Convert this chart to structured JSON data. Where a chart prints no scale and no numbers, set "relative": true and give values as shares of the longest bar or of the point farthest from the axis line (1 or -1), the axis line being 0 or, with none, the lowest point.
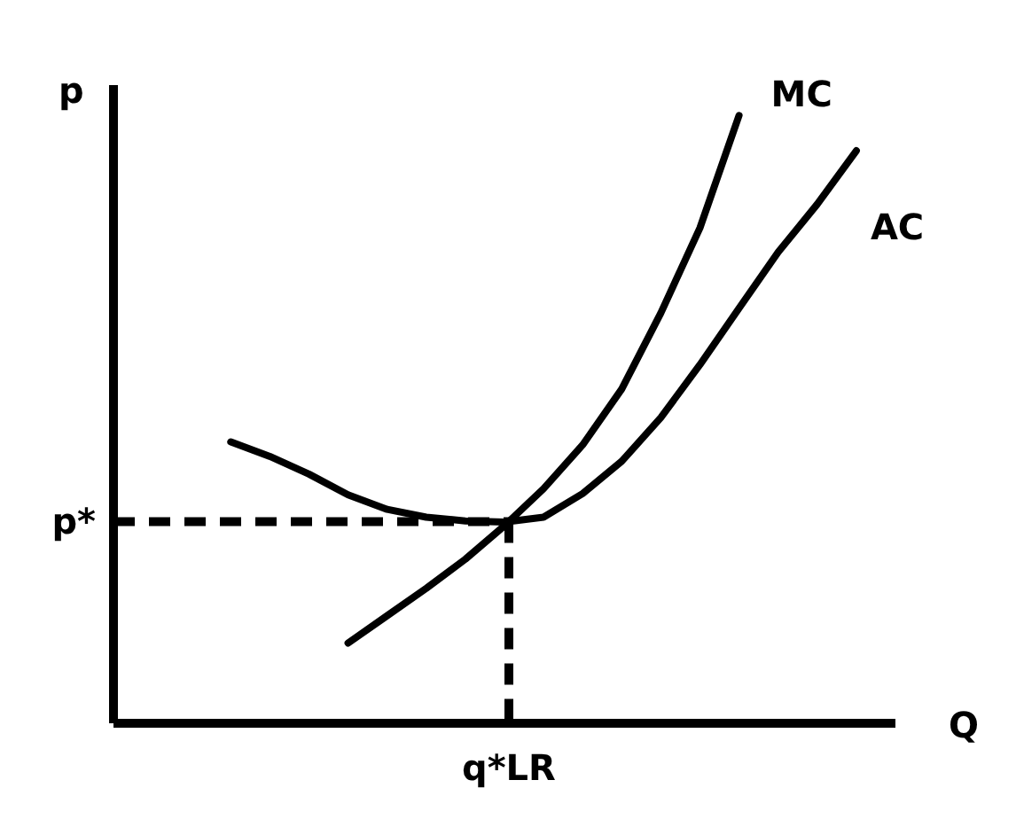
{
  "chart_data": {
    "type": "line",
    "xlabel": "Q",
    "ylabel": "p",
    "relative": true,
    "marker": "none",
    "line_style": "solid",
    "categories": [
      null,
      null,
      null,
      null,
      null,
      null,
      null,
      null,
      null,
      null,
      null,
      null,
      null,
      null,
      null,
      null,
      null,
      null,
      null,
      null,
      null
    ],
    "series": [
      {
        "name": "MC",
        "color": "#000000",
        "values": [
          null,
          null,
          null,
          null,
          null,
          null,
          0.132,
          0.177,
          0.222,
          0.27,
          0.325,
          0.386,
          0.458,
          0.55,
          0.675,
          0.815,
          1,
          null,
          null,
          null,
          null
        ]
      },
      {
        "name": "AC",
        "color": "#000000",
        "values": [
          null,
          null,
          null,
          0.463,
          0.439,
          0.41,
          0.376,
          0.352,
          0.339,
          0.333,
          0.331,
          0.339,
          0.378,
          0.431,
          0.503,
          0.59,
          0.683,
          0.775,
          0.854,
          0.942,
          null
        ]
      }
    ],
    "ref_lines": [
      {
        "axis": "y",
        "label": "p*",
        "line_style": "dashed",
        "color": "#000000"
      },
      {
        "axis": "x",
        "label": "q*LR",
        "line_style": "dashed",
        "color": "#000000"
      }
    ]
  }
}
